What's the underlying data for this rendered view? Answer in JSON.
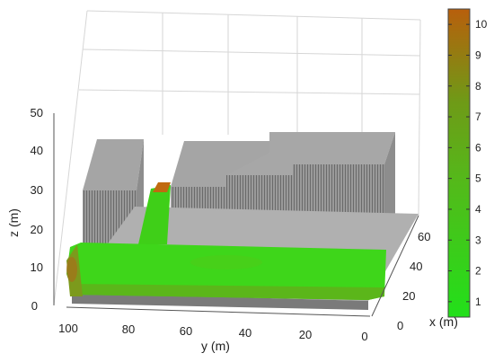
{
  "chart_data": {
    "type": "3d-scatter",
    "axes": {
      "x": {
        "label": "x (m)",
        "ticks": [
          0,
          20,
          40,
          60
        ]
      },
      "y": {
        "label": "y (m)",
        "ticks": [
          100,
          80,
          60,
          40,
          20,
          0
        ]
      },
      "z": {
        "label": "z (m)",
        "ticks": [
          0,
          10,
          20,
          30,
          40,
          50
        ]
      }
    },
    "colorbar": {
      "ticks": [
        1,
        2,
        3,
        4,
        5,
        6,
        7,
        8,
        9,
        10
      ],
      "range": [
        0.5,
        10.5
      ],
      "colors": {
        "low": "#22e01a",
        "mid": "#66a819",
        "high": "#b85f0c"
      }
    },
    "grid": true,
    "buildings_color": "#a0a0a0",
    "ground_color": "#8a8a8a",
    "points_color": "#37d316"
  }
}
